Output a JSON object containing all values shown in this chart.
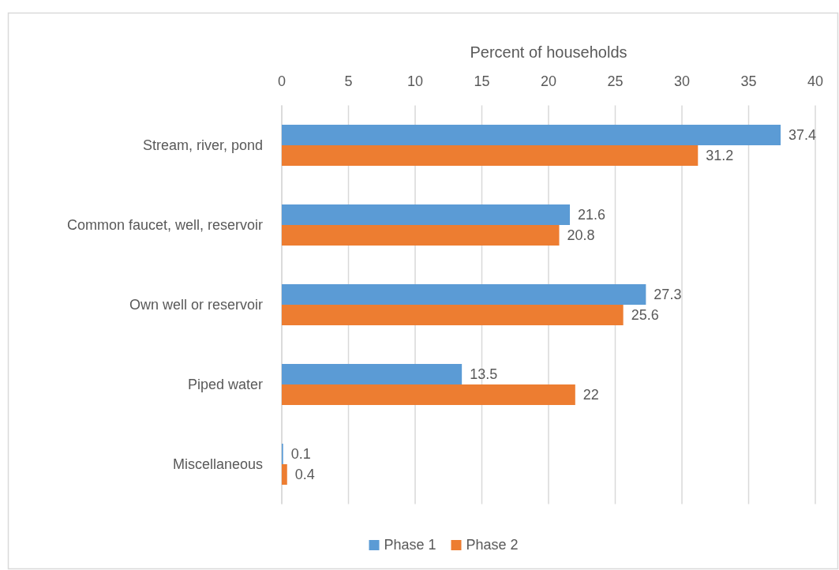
{
  "chart_data": {
    "type": "bar",
    "orientation": "horizontal",
    "xlabel": "Percent of households",
    "categories": [
      "Stream, river, pond",
      "Common faucet, well, reservoir",
      "Own well or reservoir",
      "Piped water",
      "Miscellaneous"
    ],
    "series": [
      {
        "name": "Phase 1",
        "color": "#5b9bd5",
        "values": [
          37.4,
          21.6,
          27.3,
          13.5,
          0.1
        ]
      },
      {
        "name": "Phase 2",
        "color": "#ed7d31",
        "values": [
          31.2,
          20.8,
          25.6,
          22,
          0.4
        ]
      }
    ],
    "xlim": [
      0,
      40
    ],
    "xticks": [
      0,
      5,
      10,
      15,
      20,
      25,
      30,
      35,
      40
    ],
    "grid": "x",
    "legend": "bottom",
    "data_labels": true
  }
}
